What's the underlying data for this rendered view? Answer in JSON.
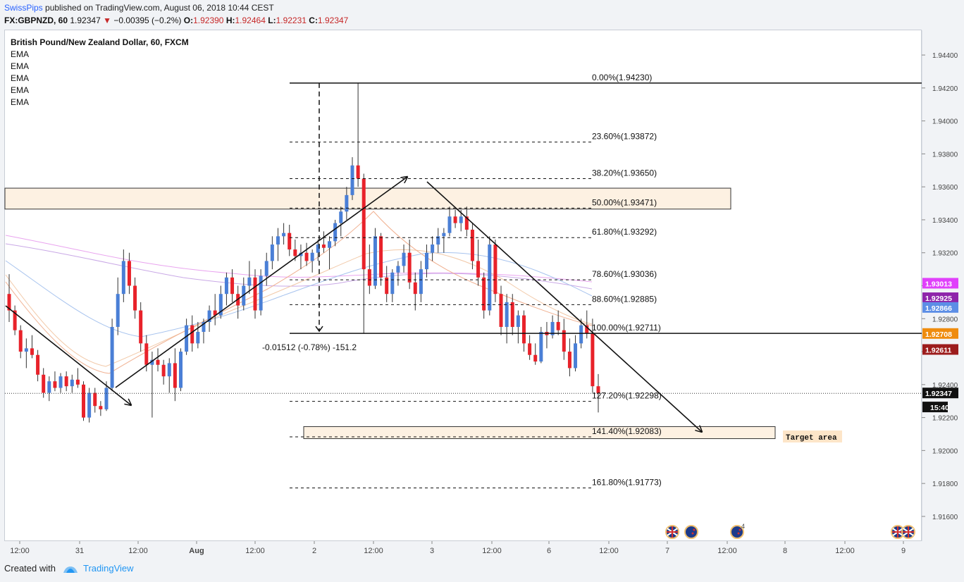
{
  "header": {
    "author": "SwissPips",
    "published_text": "published on TradingView.com, August 06, 2018 10:44 CEST",
    "symbol_line": "FX:GBPNZD, 60",
    "last_price": "1.92347",
    "change": "−0.00395 (−0.2%)",
    "open_label": "O:",
    "open_value": "1.92390",
    "high_label": "H:",
    "high_value": "1.92464",
    "low_label": "L:",
    "low_value": "1.92231",
    "close_label": "C:",
    "close_value": "1.92347"
  },
  "legend": {
    "title": "British Pound/New Zealand Dollar, 60, FXCM",
    "indicators": [
      "EMA",
      "EMA",
      "EMA",
      "EMA",
      "EMA"
    ]
  },
  "footer": {
    "created_with": "Created with",
    "brand": "TradingView"
  },
  "colors": {
    "up": "#4a7fd6",
    "down": "#e8222a",
    "zone_fill": "#fdf1e2",
    "badge_magenta": "#e040fb",
    "badge_purple": "#8e24aa",
    "badge_blue": "#5c8ee6",
    "badge_orange": "#ef8c0e",
    "badge_darkred": "#9c1c1c",
    "badge_black": "#111111"
  },
  "chart_data": {
    "type": "candlestick",
    "instrument": "GBPNZD",
    "timeframe": "60",
    "ylim": [
      1.9145,
      1.9455
    ],
    "y_ticks": [
      "1.91600",
      "1.91800",
      "1.92000",
      "1.92200",
      "1.92400",
      "1.92600",
      "1.92800",
      "1.93000",
      "1.93200",
      "1.93400",
      "1.93600",
      "1.93800",
      "1.94000",
      "1.94200",
      "1.94400"
    ],
    "x_ticks": [
      "12:00",
      "31",
      "12:00",
      "Aug",
      "12:00",
      "2",
      "12:00",
      "3",
      "12:00",
      "6",
      "12:00",
      "7",
      "12:00",
      "8",
      "12:00",
      "9"
    ],
    "price_badges": [
      {
        "label": "1.93013",
        "value": 1.93013,
        "color": "magenta"
      },
      {
        "label": "1.92925",
        "value": 1.92925,
        "color": "purple"
      },
      {
        "label": "1.92866",
        "value": 1.92866,
        "color": "blue"
      },
      {
        "label": "1.92708",
        "value": 1.92708,
        "color": "orange"
      },
      {
        "label": "1.92611",
        "value": 1.92611,
        "color": "darkred"
      },
      {
        "label": "1.92347",
        "value": 1.92347,
        "color": "black"
      },
      {
        "label": "15:40",
        "value": 1.92262,
        "color": "black"
      }
    ],
    "fibonacci": [
      {
        "label": "0.00%(1.94230)",
        "value": 1.9423,
        "style": "solid"
      },
      {
        "label": "23.60%(1.93872)",
        "value": 1.93872,
        "style": "dashed"
      },
      {
        "label": "38.20%(1.93650)",
        "value": 1.9365,
        "style": "dashed"
      },
      {
        "label": "50.00%(1.93471)",
        "value": 1.93471,
        "style": "dashed"
      },
      {
        "label": "61.80%(1.93292)",
        "value": 1.93292,
        "style": "dashed"
      },
      {
        "label": "78.60%(1.93036)",
        "value": 1.93036,
        "style": "dashed"
      },
      {
        "label": "88.60%(1.92885)",
        "value": 1.92885,
        "style": "dashed"
      },
      {
        "label": "100.00%(1.92711)",
        "value": 1.92711,
        "style": "solid"
      },
      {
        "label": "127.20%(1.92298)",
        "value": 1.92298,
        "style": "dashed"
      },
      {
        "label": "141.40%(1.92083)",
        "value": 1.92083,
        "style": "dashed"
      },
      {
        "label": "161.80%(1.91773)",
        "value": 1.91773,
        "style": "dashed"
      }
    ],
    "measure_label": "-0.01512 (-0.78%) -151.2",
    "target_label": "Target area",
    "zones": [
      {
        "name": "resistance-zone",
        "from": 1.93465,
        "to": 1.93592
      },
      {
        "name": "target-zone",
        "from": 1.92072,
        "to": 1.92145
      }
    ],
    "candles": [
      [
        1.9295,
        1.9307,
        1.9278,
        1.9285
      ],
      [
        1.9285,
        1.9288,
        1.927,
        1.9273
      ],
      [
        1.9273,
        1.9276,
        1.9256,
        1.926
      ],
      [
        1.926,
        1.9268,
        1.925,
        1.9262
      ],
      [
        1.9262,
        1.927,
        1.9256,
        1.9258
      ],
      [
        1.9258,
        1.9261,
        1.9242,
        1.9246
      ],
      [
        1.9246,
        1.925,
        1.9232,
        1.9235
      ],
      [
        1.9235,
        1.9245,
        1.923,
        1.9242
      ],
      [
        1.9242,
        1.9248,
        1.9236,
        1.9238
      ],
      [
        1.9238,
        1.9247,
        1.9235,
        1.9245
      ],
      [
        1.9245,
        1.9248,
        1.9236,
        1.9239
      ],
      [
        1.9239,
        1.9246,
        1.9235,
        1.9243
      ],
      [
        1.9243,
        1.925,
        1.9238,
        1.924
      ],
      [
        1.924,
        1.9242,
        1.9218,
        1.922
      ],
      [
        1.922,
        1.9238,
        1.9217,
        1.9235
      ],
      [
        1.9235,
        1.9238,
        1.9223,
        1.9227
      ],
      [
        1.9227,
        1.923,
        1.9221,
        1.9225
      ],
      [
        1.9225,
        1.9242,
        1.9224,
        1.9238
      ],
      [
        1.9238,
        1.928,
        1.9236,
        1.9275
      ],
      [
        1.9275,
        1.9305,
        1.927,
        1.9295
      ],
      [
        1.9295,
        1.9322,
        1.929,
        1.9315
      ],
      [
        1.9315,
        1.932,
        1.9295,
        1.93
      ],
      [
        1.93,
        1.9305,
        1.928,
        1.9285
      ],
      [
        1.9285,
        1.929,
        1.926,
        1.9265
      ],
      [
        1.9265,
        1.927,
        1.9248,
        1.9252
      ],
      [
        1.9252,
        1.926,
        1.922,
        1.9255
      ],
      [
        1.9255,
        1.9262,
        1.9248,
        1.9252
      ],
      [
        1.9252,
        1.9255,
        1.924,
        1.9245
      ],
      [
        1.9245,
        1.9256,
        1.9235,
        1.9253
      ],
      [
        1.9253,
        1.9262,
        1.923,
        1.9238
      ],
      [
        1.9238,
        1.9262,
        1.9236,
        1.926
      ],
      [
        1.926,
        1.928,
        1.9258,
        1.9276
      ],
      [
        1.9276,
        1.9282,
        1.926,
        1.9265
      ],
      [
        1.9265,
        1.9278,
        1.9262,
        1.9272
      ],
      [
        1.9272,
        1.928,
        1.9265,
        1.9278
      ],
      [
        1.9278,
        1.9288,
        1.9272,
        1.9285
      ],
      [
        1.9285,
        1.9295,
        1.9276,
        1.9282
      ],
      [
        1.9282,
        1.93,
        1.928,
        1.9295
      ],
      [
        1.9295,
        1.9308,
        1.9288,
        1.9305
      ],
      [
        1.9305,
        1.931,
        1.929,
        1.9295
      ],
      [
        1.9295,
        1.93,
        1.928,
        1.9288
      ],
      [
        1.9288,
        1.9305,
        1.9285,
        1.93
      ],
      [
        1.93,
        1.9315,
        1.9295,
        1.9305
      ],
      [
        1.9305,
        1.931,
        1.928,
        1.9285
      ],
      [
        1.9285,
        1.931,
        1.9282,
        1.9306
      ],
      [
        1.9306,
        1.932,
        1.93,
        1.9315
      ],
      [
        1.9315,
        1.933,
        1.931,
        1.9325
      ],
      [
        1.9325,
        1.9335,
        1.9315,
        1.933
      ],
      [
        1.933,
        1.9338,
        1.9325,
        1.9332
      ],
      [
        1.9332,
        1.9337,
        1.9318,
        1.9322
      ],
      [
        1.9322,
        1.9328,
        1.9315,
        1.9318
      ],
      [
        1.9318,
        1.9325,
        1.931,
        1.932
      ],
      [
        1.932,
        1.9326,
        1.9312,
        1.9315
      ],
      [
        1.9315,
        1.9322,
        1.9308,
        1.932
      ],
      [
        1.932,
        1.9328,
        1.9315,
        1.9325
      ],
      [
        1.9325,
        1.9333,
        1.932,
        1.9323
      ],
      [
        1.9323,
        1.933,
        1.931,
        1.9327
      ],
      [
        1.9327,
        1.934,
        1.9324,
        1.9338
      ],
      [
        1.9338,
        1.9348,
        1.933,
        1.9345
      ],
      [
        1.9345,
        1.936,
        1.934,
        1.9355
      ],
      [
        1.9355,
        1.9378,
        1.9352,
        1.9373
      ],
      [
        1.9373,
        1.9423,
        1.936,
        1.9365
      ],
      [
        1.9365,
        1.9368,
        1.92711,
        1.931
      ],
      [
        1.931,
        1.9325,
        1.9295,
        1.93
      ],
      [
        1.93,
        1.9335,
        1.9298,
        1.933
      ],
      [
        1.933,
        1.9332,
        1.93,
        1.9305
      ],
      [
        1.9305,
        1.9312,
        1.929,
        1.9295
      ],
      [
        1.9295,
        1.931,
        1.929,
        1.9308
      ],
      [
        1.9308,
        1.9315,
        1.93,
        1.9312
      ],
      [
        1.9312,
        1.9325,
        1.9308,
        1.932
      ],
      [
        1.932,
        1.9328,
        1.9298,
        1.9302
      ],
      [
        1.9302,
        1.9308,
        1.9285,
        1.9295
      ],
      [
        1.9295,
        1.9315,
        1.929,
        1.931
      ],
      [
        1.931,
        1.9325,
        1.9305,
        1.932
      ],
      [
        1.932,
        1.933,
        1.9315,
        1.9325
      ],
      [
        1.9325,
        1.9335,
        1.932,
        1.933
      ],
      [
        1.933,
        1.9335,
        1.932,
        1.9332
      ],
      [
        1.9332,
        1.9348,
        1.933,
        1.9342
      ],
      [
        1.9342,
        1.9346,
        1.9335,
        1.9338
      ],
      [
        1.9338,
        1.9346,
        1.9333,
        1.9342
      ],
      [
        1.9342,
        1.9348,
        1.933,
        1.9334
      ],
      [
        1.9334,
        1.9338,
        1.931,
        1.9315
      ],
      [
        1.9315,
        1.9328,
        1.93,
        1.9305
      ],
      [
        1.9305,
        1.9308,
        1.928,
        1.9285
      ],
      [
        1.9285,
        1.933,
        1.9282,
        1.9325
      ],
      [
        1.9325,
        1.9328,
        1.929,
        1.9295
      ],
      [
        1.9295,
        1.93,
        1.927,
        1.9275
      ],
      [
        1.9275,
        1.9295,
        1.9265,
        1.929
      ],
      [
        1.929,
        1.9295,
        1.927,
        1.9275
      ],
      [
        1.9275,
        1.9285,
        1.9265,
        1.9282
      ],
      [
        1.9282,
        1.9285,
        1.926,
        1.9265
      ],
      [
        1.9265,
        1.927,
        1.9255,
        1.9258
      ],
      [
        1.9258,
        1.9265,
        1.9252,
        1.9254
      ],
      [
        1.9254,
        1.9275,
        1.9253,
        1.9272
      ],
      [
        1.9272,
        1.9278,
        1.9262,
        1.927
      ],
      [
        1.927,
        1.9282,
        1.9268,
        1.9278
      ],
      [
        1.9278,
        1.9285,
        1.927,
        1.9273
      ],
      [
        1.9273,
        1.928,
        1.9255,
        1.926
      ],
      [
        1.926,
        1.9268,
        1.9245,
        1.925
      ],
      [
        1.925,
        1.927,
        1.9248,
        1.9265
      ],
      [
        1.9265,
        1.928,
        1.9262,
        1.9276
      ],
      [
        1.9276,
        1.9285,
        1.9268,
        1.92711
      ],
      [
        1.92711,
        1.928,
        1.9235,
        1.9239
      ],
      [
        1.9239,
        1.92464,
        1.92231,
        1.92347
      ]
    ]
  }
}
